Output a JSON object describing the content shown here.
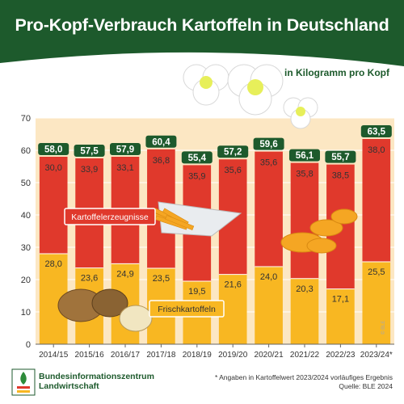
{
  "title": "Pro-Kopf-Verbrauch Kartoffeln in Deutschland",
  "unit_label": "in Kilogramm pro Kopf",
  "colors": {
    "green": "#1d5a2c",
    "red": "#e0392c",
    "yellow": "#f8b722",
    "plot_bg": "#fce7c3"
  },
  "chart_data": {
    "type": "bar",
    "stacked": true,
    "categories": [
      "2014/15",
      "2015/16",
      "2016/17",
      "2017/18",
      "2018/19",
      "2019/20",
      "2020/21",
      "2021/22",
      "2022/23",
      "2023/24*"
    ],
    "series": [
      {
        "name": "Frischkartoffeln",
        "values": [
          28.0,
          23.6,
          24.9,
          23.5,
          19.5,
          21.6,
          24.0,
          20.3,
          17.1,
          25.5
        ],
        "labels": [
          "28,0",
          "23,6",
          "24,9",
          "23,5",
          "19,5",
          "21,6",
          "24,0",
          "20,3",
          "17,1",
          "25,5"
        ],
        "color": "#f8b722"
      },
      {
        "name": "Kartoffelerzeugnisse",
        "values": [
          30.0,
          33.9,
          33.1,
          36.8,
          35.9,
          35.6,
          35.6,
          35.8,
          38.5,
          38.0
        ],
        "labels": [
          "30,0",
          "33,9",
          "33,1",
          "36,8",
          "35,9",
          "35,6",
          "35,6",
          "35,8",
          "38,5",
          "38,0"
        ],
        "color": "#e0392c"
      }
    ],
    "totals": [
      58.0,
      57.5,
      57.9,
      60.4,
      55.4,
      57.2,
      59.6,
      56.1,
      55.7,
      63.5
    ],
    "total_labels": [
      "58,0",
      "57,5",
      "57,9",
      "60,4",
      "55,4",
      "57,2",
      "59,6",
      "56,1",
      "55,7",
      "63,5"
    ],
    "ylim": [
      0,
      70
    ],
    "yticks": [
      0,
      10,
      20,
      30,
      40,
      50,
      60,
      70
    ],
    "grid": true,
    "xlabel": "",
    "ylabel": ""
  },
  "footer": {
    "organization_line1": "Bundesinformationszentrum",
    "organization_line2": "Landwirtschaft",
    "note": "* Angaben in Kartoffelwert 2023/2024 vorläufiges Ergebnis",
    "source": "Quelle: BLE 2024",
    "watermark": "© BLE"
  }
}
